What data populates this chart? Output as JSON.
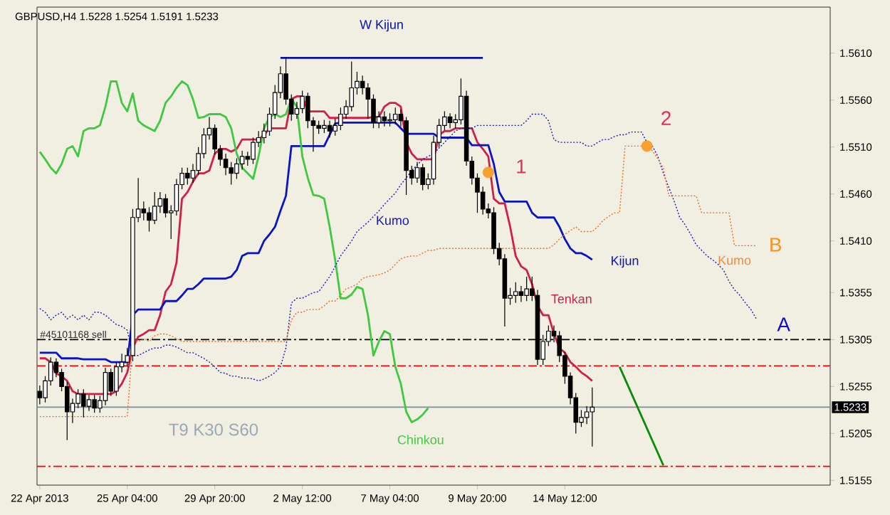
{
  "chart_data": {
    "type": "candlestick",
    "title": "GBPUSD,H4  1.5228 1.5254 1.5191 1.5233",
    "categories": [
      "22 Apr 2013",
      null,
      null,
      null,
      null,
      null,
      null,
      null,
      null,
      null,
      null,
      null,
      null,
      null,
      null,
      null,
      "25 Apr 04:00",
      null,
      null,
      null,
      null,
      null,
      null,
      null,
      null,
      null,
      null,
      null,
      null,
      null,
      null,
      null,
      "29 Apr 20:00",
      null,
      null,
      null,
      null,
      null,
      null,
      null,
      null,
      null,
      null,
      null,
      null,
      null,
      null,
      null,
      "2 May 12:00",
      null,
      null,
      null,
      null,
      null,
      null,
      null,
      null,
      null,
      null,
      null,
      null,
      null,
      null,
      null,
      "7 May 04:00",
      null,
      null,
      null,
      null,
      null,
      null,
      null,
      null,
      null,
      null,
      null,
      null,
      null,
      null,
      null,
      "9 May 20:00",
      null,
      null,
      null,
      null,
      null,
      null,
      null,
      null,
      null,
      null,
      null,
      null,
      null,
      null,
      null,
      "14 May 12:00",
      null,
      null,
      null,
      null,
      null,
      null,
      null,
      null,
      null,
      null,
      null,
      null,
      null,
      null,
      null,
      null,
      null,
      null,
      null,
      null,
      null,
      null,
      null,
      null,
      null,
      null,
      null,
      null,
      null,
      null,
      null,
      null,
      null,
      null,
      null,
      null,
      null,
      null,
      null,
      null,
      null,
      null,
      null,
      null,
      null,
      null,
      null,
      null
    ],
    "ohlc": [
      [
        1.525,
        1.5256,
        1.5236,
        1.5243
      ],
      [
        1.5243,
        1.5266,
        1.5238,
        1.5261
      ],
      [
        1.5261,
        1.5286,
        1.5256,
        1.5281
      ],
      [
        1.5281,
        1.5285,
        1.5265,
        1.527
      ],
      [
        1.527,
        1.5274,
        1.525,
        1.5255
      ],
      [
        1.5255,
        1.526,
        1.5198,
        1.5228
      ],
      [
        1.5228,
        1.5242,
        1.5216,
        1.5237
      ],
      [
        1.5237,
        1.5252,
        1.5232,
        1.5247
      ],
      [
        1.5247,
        1.5252,
        1.5222,
        1.5234
      ],
      [
        1.5234,
        1.5246,
        1.5229,
        1.5241
      ],
      [
        1.5241,
        1.5246,
        1.5227,
        1.5232
      ],
      [
        1.5232,
        1.5245,
        1.5227,
        1.524
      ],
      [
        1.524,
        1.5275,
        1.5235,
        1.527
      ],
      [
        1.527,
        1.5274,
        1.5245,
        1.525
      ],
      [
        1.525,
        1.5281,
        1.5245,
        1.5276
      ],
      [
        1.5276,
        1.529,
        1.527,
        1.5281
      ],
      [
        1.5281,
        1.5296,
        1.5276,
        1.5288
      ],
      [
        1.5288,
        1.5444,
        1.5282,
        1.5435
      ],
      [
        1.5435,
        1.5477,
        1.543,
        1.5444
      ],
      [
        1.5444,
        1.5452,
        1.5432,
        1.544
      ],
      [
        1.544,
        1.5446,
        1.542,
        1.5432
      ],
      [
        1.5432,
        1.5462,
        1.5428,
        1.5447
      ],
      [
        1.5447,
        1.5462,
        1.544,
        1.5455
      ],
      [
        1.5455,
        1.546,
        1.5435,
        1.544
      ],
      [
        1.544,
        1.5448,
        1.5412,
        1.5442
      ],
      [
        1.5442,
        1.5476,
        1.5437,
        1.547
      ],
      [
        1.547,
        1.5488,
        1.5465,
        1.5482
      ],
      [
        1.5482,
        1.5488,
        1.547,
        1.5477
      ],
      [
        1.5477,
        1.5492,
        1.5472,
        1.5485
      ],
      [
        1.5485,
        1.551,
        1.548,
        1.5503
      ],
      [
        1.5503,
        1.553,
        1.5498,
        1.5523
      ],
      [
        1.5523,
        1.5542,
        1.5518,
        1.553
      ],
      [
        1.553,
        1.5534,
        1.5502,
        1.5508
      ],
      [
        1.5508,
        1.5512,
        1.549,
        1.5497
      ],
      [
        1.5497,
        1.5503,
        1.548,
        1.5488
      ],
      [
        1.5488,
        1.5494,
        1.547,
        1.5482
      ],
      [
        1.5482,
        1.5498,
        1.5476,
        1.5492
      ],
      [
        1.5492,
        1.5506,
        1.5486,
        1.55
      ],
      [
        1.55,
        1.5505,
        1.549,
        1.5497
      ],
      [
        1.5497,
        1.552,
        1.5492,
        1.5515
      ],
      [
        1.5515,
        1.5527,
        1.551,
        1.552
      ],
      [
        1.552,
        1.5535,
        1.5514,
        1.5527
      ],
      [
        1.5527,
        1.5552,
        1.5522,
        1.5545
      ],
      [
        1.5545,
        1.5576,
        1.554,
        1.5568
      ],
      [
        1.5568,
        1.5596,
        1.5562,
        1.5588
      ],
      [
        1.5588,
        1.5606,
        1.5555,
        1.5561
      ],
      [
        1.5561,
        1.5566,
        1.5538,
        1.5545
      ],
      [
        1.5545,
        1.5558,
        1.554,
        1.5551
      ],
      [
        1.5551,
        1.557,
        1.5546,
        1.5564
      ],
      [
        1.5564,
        1.5568,
        1.553,
        1.5538
      ],
      [
        1.5538,
        1.5542,
        1.5505,
        1.5533
      ],
      [
        1.5533,
        1.5538,
        1.5524,
        1.553
      ],
      [
        1.553,
        1.5539,
        1.5525,
        1.5533
      ],
      [
        1.5533,
        1.5538,
        1.552,
        1.5527
      ],
      [
        1.5527,
        1.554,
        1.5522,
        1.5533
      ],
      [
        1.5533,
        1.5552,
        1.5528,
        1.5545
      ],
      [
        1.5545,
        1.556,
        1.554,
        1.5553
      ],
      [
        1.5553,
        1.5601,
        1.5548,
        1.5573
      ],
      [
        1.5573,
        1.559,
        1.5566,
        1.558
      ],
      [
        1.558,
        1.5586,
        1.5566,
        1.5573
      ],
      [
        1.5573,
        1.5578,
        1.554,
        1.5561
      ],
      [
        1.5561,
        1.5566,
        1.553,
        1.5536
      ],
      [
        1.5536,
        1.5548,
        1.553,
        1.5542
      ],
      [
        1.5542,
        1.5548,
        1.5532,
        1.5538
      ],
      [
        1.5538,
        1.5546,
        1.5532,
        1.5539
      ],
      [
        1.5539,
        1.5552,
        1.5534,
        1.5545
      ],
      [
        1.5545,
        1.555,
        1.5532,
        1.5538
      ],
      [
        1.5538,
        1.5542,
        1.5459,
        1.5485
      ],
      [
        1.5485,
        1.549,
        1.547,
        1.5477
      ],
      [
        1.5477,
        1.5494,
        1.5472,
        1.5488
      ],
      [
        1.5488,
        1.5492,
        1.5464,
        1.547
      ],
      [
        1.547,
        1.5482,
        1.5465,
        1.5476
      ],
      [
        1.5476,
        1.5522,
        1.547,
        1.5515
      ],
      [
        1.5515,
        1.554,
        1.551,
        1.5533
      ],
      [
        1.5533,
        1.5548,
        1.5528,
        1.5542
      ],
      [
        1.5542,
        1.5546,
        1.553,
        1.5536
      ],
      [
        1.5536,
        1.5545,
        1.553,
        1.5539
      ],
      [
        1.5539,
        1.5583,
        1.5534,
        1.5564
      ],
      [
        1.5564,
        1.557,
        1.549,
        1.5495
      ],
      [
        1.5495,
        1.55,
        1.547,
        1.5477
      ],
      [
        1.5477,
        1.5482,
        1.544,
        1.5462
      ],
      [
        1.5462,
        1.5468,
        1.5438,
        1.5444
      ],
      [
        1.5444,
        1.545,
        1.5434,
        1.544
      ],
      [
        1.544,
        1.5446,
        1.5396,
        1.5402
      ],
      [
        1.5402,
        1.5408,
        1.5384,
        1.5391
      ],
      [
        1.5391,
        1.5396,
        1.5319,
        1.5349
      ],
      [
        1.5349,
        1.536,
        1.5342,
        1.5352
      ],
      [
        1.5352,
        1.5366,
        1.5344,
        1.5356
      ],
      [
        1.5356,
        1.5362,
        1.5345,
        1.5352
      ],
      [
        1.5352,
        1.5372,
        1.5346,
        1.5359
      ],
      [
        1.5359,
        1.5372,
        1.5346,
        1.5352
      ],
      [
        1.5352,
        1.5358,
        1.5278,
        1.5284
      ],
      [
        1.5284,
        1.531,
        1.5278,
        1.5303
      ],
      [
        1.5303,
        1.532,
        1.5298,
        1.5314
      ],
      [
        1.5314,
        1.532,
        1.5302,
        1.5309
      ],
      [
        1.5309,
        1.5314,
        1.5281,
        1.5288
      ],
      [
        1.5288,
        1.5292,
        1.5258,
        1.5266
      ],
      [
        1.5266,
        1.527,
        1.5236,
        1.5243
      ],
      [
        1.5243,
        1.5248,
        1.5205,
        1.5217
      ],
      [
        1.5217,
        1.523,
        1.5212,
        1.5222
      ],
      [
        1.5222,
        1.5234,
        1.5215,
        1.5228
      ],
      [
        1.5228,
        1.5254,
        1.5191,
        1.5233
      ],
      null,
      null,
      null,
      null,
      null,
      null,
      null,
      null,
      null,
      null,
      null,
      null,
      null,
      null,
      null,
      null,
      null,
      null,
      null,
      null,
      null,
      null,
      null,
      null,
      null,
      null,
      null,
      null,
      null,
      null,
      null,
      null,
      null,
      null,
      null,
      null,
      null,
      null,
      null,
      null,
      null,
      null,
      null
    ],
    "series": [
      {
        "name": "Tenkan",
        "type": "line",
        "color": "#d0204a",
        "values": [
          1.5285,
          1.5285,
          1.5281,
          1.5269,
          1.5266,
          1.5261,
          1.525,
          1.5247,
          1.5247,
          1.5247,
          1.5247,
          1.5247,
          1.5247,
          1.5247,
          1.525,
          1.5258,
          1.527,
          1.5296,
          1.5308,
          1.5311,
          1.5315,
          1.5315,
          1.5331,
          1.5356,
          1.5364,
          1.5387,
          1.5455,
          1.5462,
          1.5473,
          1.5482,
          1.5482,
          1.5485,
          1.5503,
          1.5508,
          1.5508,
          1.5505,
          1.5508,
          1.5518,
          1.5518,
          1.5518,
          1.5518,
          1.5523,
          1.553,
          1.553,
          1.553,
          1.553,
          1.5561,
          1.5564,
          1.5564,
          1.5548,
          1.5548,
          1.5548,
          1.5548,
          1.5541,
          1.5541,
          1.5541,
          1.5541,
          1.5541,
          1.5541,
          1.5541,
          1.5541,
          1.5542,
          1.5542,
          1.5553,
          1.5557,
          1.5557,
          1.5553,
          1.5515,
          1.5503,
          1.5497,
          1.5497,
          1.5497,
          1.5497,
          1.5523,
          1.5527,
          1.5527,
          1.553,
          1.553,
          1.553,
          1.553,
          1.5515,
          1.5508,
          1.55,
          1.5455,
          1.545,
          1.545,
          1.5425,
          1.5394,
          1.5383,
          1.5379,
          1.5364,
          1.5341,
          1.5331,
          1.5331,
          1.5311,
          1.5296,
          1.5291,
          1.5281,
          1.5276,
          1.527,
          1.5266,
          1.5261,
          null,
          null,
          null,
          null,
          null,
          null,
          null,
          null,
          null,
          null,
          null,
          null,
          null,
          null,
          null,
          null,
          null,
          null,
          null,
          null,
          null,
          null,
          null,
          null,
          null,
          null,
          null,
          null,
          null,
          null,
          null,
          null,
          null,
          null,
          null,
          null,
          null,
          null,
          null,
          null,
          null,
          null,
          null
        ]
      },
      {
        "name": "Kijun",
        "type": "line",
        "color": "#0a14c0",
        "values": [
          1.5291,
          1.5291,
          1.5291,
          1.5291,
          1.5285,
          1.5285,
          1.5285,
          1.5285,
          1.5284,
          1.5284,
          1.5284,
          1.5284,
          1.5284,
          1.5281,
          1.5281,
          1.5281,
          1.5281,
          1.5331,
          1.5337,
          1.5337,
          1.5337,
          1.5337,
          1.5337,
          1.5346,
          1.5346,
          1.5346,
          1.5352,
          1.5359,
          1.5359,
          1.5364,
          1.537,
          1.537,
          1.537,
          1.537,
          1.537,
          1.5372,
          1.5379,
          1.5394,
          1.5397,
          1.5397,
          1.5397,
          1.541,
          1.5417,
          1.5425,
          1.5442,
          1.5458,
          1.5511,
          1.5511,
          1.5511,
          1.5511,
          1.5511,
          1.5511,
          1.5511,
          1.5523,
          1.5535,
          1.5536,
          1.5536,
          1.5536,
          1.5536,
          1.5536,
          1.5536,
          1.5536,
          1.5536,
          1.5536,
          1.5536,
          1.5536,
          1.553,
          1.5524,
          1.5524,
          1.5524,
          1.5524,
          1.5524,
          1.5524,
          1.552,
          1.552,
          1.552,
          1.552,
          1.552,
          1.552,
          1.5512,
          1.5512,
          1.5512,
          1.5512,
          1.5492,
          1.5462,
          1.5452,
          1.5452,
          1.5452,
          1.5452,
          1.5452,
          1.544,
          1.5435,
          1.5435,
          1.5435,
          1.5435,
          1.5425,
          1.5412,
          1.5402,
          1.5397,
          1.5397,
          1.5394,
          1.539,
          null,
          null,
          null,
          null,
          null,
          null,
          null,
          null,
          null,
          null,
          null,
          null,
          null,
          null,
          null,
          null,
          null,
          null,
          null,
          null,
          null,
          null,
          null,
          null,
          null,
          null,
          null,
          null,
          null,
          null,
          null,
          null,
          null,
          null,
          null,
          null,
          null,
          null,
          null,
          null,
          null,
          null,
          null
        ]
      },
      {
        "name": "Chinkou",
        "type": "line",
        "color": "#40c840",
        "values": [
          1.5505,
          1.5497,
          1.5488,
          1.5482,
          1.5492,
          1.5508,
          1.5511,
          1.55,
          1.5527,
          1.553,
          1.553,
          1.5533,
          1.5553,
          1.558,
          1.558,
          1.5557,
          1.5548,
          1.5567,
          1.5538,
          1.5533,
          1.553,
          1.5527,
          1.5538,
          1.5557,
          1.5564,
          1.5573,
          1.558,
          1.5576,
          1.5561,
          1.5541,
          1.5542,
          1.5545,
          1.5545,
          1.5545,
          1.5542,
          1.553,
          1.5503,
          1.5488,
          1.5482,
          1.5476,
          1.55,
          1.553,
          1.5542,
          1.5545,
          1.5542,
          1.5545,
          1.5561,
          1.5553,
          1.55,
          1.5477,
          1.5459,
          1.5458,
          1.5455,
          1.5425,
          1.539,
          1.5349,
          1.5349,
          1.5353,
          1.5361,
          1.5359,
          1.5331,
          1.5288,
          1.5303,
          1.5314,
          1.5311,
          1.5276,
          1.5258,
          1.5228,
          1.5217,
          1.522,
          1.5225,
          1.5232,
          null,
          null,
          null,
          null,
          null,
          null,
          null,
          null,
          null,
          null,
          null,
          null,
          null,
          null,
          null,
          null,
          null,
          null,
          null,
          null,
          null,
          null,
          null,
          null,
          null,
          null,
          null,
          null,
          null,
          null,
          null,
          null,
          null,
          null,
          null,
          null,
          null,
          null,
          null,
          null,
          null,
          null,
          null,
          null,
          null,
          null,
          null,
          null,
          null,
          null,
          null,
          null,
          null,
          null,
          null,
          null,
          null,
          null,
          null,
          null,
          null,
          null,
          null,
          null,
          null,
          null,
          null,
          null,
          null,
          null,
          null,
          null,
          null
        ]
      },
      {
        "name": "W Kijun",
        "type": "line",
        "color": "#0a14a0",
        "values": [
          null,
          null,
          null,
          null,
          null,
          null,
          null,
          null,
          null,
          null,
          null,
          null,
          null,
          null,
          null,
          null,
          null,
          null,
          null,
          null,
          null,
          null,
          null,
          null,
          null,
          null,
          null,
          null,
          null,
          null,
          null,
          null,
          null,
          null,
          null,
          null,
          null,
          null,
          null,
          null,
          null,
          null,
          null,
          null,
          1.5605,
          1.5605,
          1.5605,
          1.5605,
          1.5605,
          1.5605,
          1.5605,
          1.5605,
          1.5605,
          1.5605,
          1.5605,
          1.5605,
          1.5605,
          1.5605,
          1.5605,
          1.5605,
          1.5605,
          1.5605,
          1.5605,
          1.5605,
          1.5605,
          1.5605,
          1.5605,
          1.5605,
          1.5605,
          1.5605,
          1.5605,
          1.5605,
          1.5605,
          1.5605,
          1.5605,
          1.5605,
          1.5605,
          1.5605,
          1.5605,
          1.5605,
          1.5605,
          1.5605,
          null,
          null,
          null,
          null,
          null,
          null,
          null,
          null,
          null,
          null,
          null,
          null,
          null,
          null,
          null,
          null,
          null,
          null,
          null,
          null,
          null,
          null,
          null,
          null,
          null,
          null,
          null,
          null,
          null,
          null,
          null,
          null,
          null,
          null,
          null,
          null,
          null,
          null,
          null,
          null,
          null,
          null,
          null,
          null,
          null,
          null,
          null,
          null,
          null,
          null,
          null,
          null,
          null,
          null,
          null,
          null,
          null,
          null,
          null,
          null,
          null,
          null,
          null
        ]
      },
      {
        "type": "line",
        "color": "#1a1ab4",
        "line_style": "dotted",
        "values": [
          1.5338,
          1.5334,
          1.5326,
          1.5331,
          1.5334,
          1.5327,
          1.5331,
          1.5326,
          1.5331,
          1.5326,
          1.5334,
          1.5334,
          1.5331,
          1.5326,
          1.5321,
          1.5319,
          1.5315,
          1.5288,
          1.5288,
          1.5291,
          1.5294,
          1.5296,
          1.5296,
          1.5299,
          1.5299,
          1.5297,
          1.5294,
          1.5291,
          1.5291,
          1.5288,
          1.5285,
          1.5281,
          1.5276,
          1.527,
          1.5269,
          1.5266,
          1.5266,
          1.5264,
          1.5264,
          1.5263,
          1.5261,
          1.5263,
          1.5266,
          1.527,
          1.5276,
          1.5296,
          1.5344,
          1.5349,
          1.5349,
          1.5352,
          1.5355,
          1.5356,
          1.5364,
          1.5372,
          1.5383,
          1.5394,
          1.5402,
          1.541,
          1.542,
          1.5425,
          1.543,
          1.5436,
          1.5442,
          1.5449,
          1.5455,
          1.5461,
          1.547,
          1.5477,
          1.5485,
          1.5491,
          1.5497,
          1.55,
          1.5503,
          1.5509,
          1.5515,
          1.5521,
          1.5527,
          1.553,
          1.553,
          1.553,
          1.5533,
          1.5533,
          1.5533,
          1.5533,
          1.5533,
          1.5533,
          1.5533,
          1.5533,
          1.5533,
          1.5538,
          1.5545,
          1.5545,
          1.5545,
          1.5538,
          1.5518,
          1.5515,
          1.5515,
          1.5515,
          1.5515,
          1.5515,
          1.5511,
          1.5511,
          1.5515,
          1.5518,
          1.5518,
          1.5521,
          1.5523,
          1.5523,
          1.5526,
          1.5526,
          1.5526,
          1.5515,
          1.5511,
          1.55,
          1.5482,
          1.5467,
          1.5452,
          1.5435,
          1.5427,
          1.5417,
          1.5406,
          1.54,
          1.5394,
          1.539,
          1.5385,
          1.5379,
          1.5367,
          1.5358,
          1.5352,
          1.5344,
          1.5337,
          1.5327,
          null,
          null,
          null,
          null,
          null,
          null,
          null,
          null,
          null,
          null,
          null,
          null,
          null
        ]
      },
      {
        "type": "line",
        "color": "#f06a1e",
        "line_style": "dotted",
        "values": [
          1.5223,
          1.5223,
          1.5223,
          1.5223,
          1.5223,
          1.5223,
          1.5223,
          1.5223,
          1.5223,
          1.5223,
          1.5223,
          1.5223,
          1.5223,
          1.5223,
          1.5223,
          1.5223,
          1.5223,
          1.5303,
          1.5303,
          1.5306,
          1.5303,
          1.5309,
          1.5311,
          1.5311,
          1.5309,
          1.5306,
          1.5303,
          1.5303,
          1.5303,
          1.5303,
          1.5303,
          1.5303,
          1.5303,
          1.5303,
          1.5303,
          1.5303,
          1.5303,
          1.5303,
          1.5303,
          1.5303,
          1.5303,
          1.5303,
          1.5303,
          1.5303,
          1.5303,
          1.5303,
          1.5326,
          1.5334,
          1.5334,
          1.5337,
          1.5337,
          1.5337,
          1.5341,
          1.5346,
          1.5346,
          1.5352,
          1.5359,
          1.5361,
          1.5364,
          1.537,
          1.5372,
          1.5373,
          1.5374,
          1.5376,
          1.5379,
          1.5385,
          1.5391,
          1.5393,
          1.5394,
          1.5394,
          1.5397,
          1.54,
          1.54,
          1.5402,
          1.5402,
          1.5402,
          1.5402,
          1.5402,
          1.5402,
          1.5402,
          1.5402,
          1.5402,
          1.5402,
          1.5402,
          1.5402,
          1.5402,
          1.5402,
          1.5402,
          1.5402,
          1.5402,
          1.5402,
          1.5402,
          1.5402,
          1.5402,
          1.5406,
          1.5412,
          1.5417,
          1.5421,
          1.5425,
          1.542,
          1.542,
          1.542,
          1.5425,
          1.5432,
          1.5436,
          1.544,
          1.544,
          1.5511,
          1.5511,
          1.5511,
          1.5511,
          1.5511,
          1.5506,
          1.5497,
          1.5488,
          1.5458,
          1.5458,
          1.5458,
          1.5458,
          1.5458,
          1.5458,
          1.544,
          1.544,
          1.544,
          1.544,
          1.544,
          1.544,
          1.5405,
          1.5405,
          1.5405,
          1.5405,
          1.5405,
          null,
          null,
          null,
          null,
          null,
          null,
          null,
          null,
          null,
          null,
          null,
          null,
          null
        ]
      },
      {
        "type": "line",
        "color": "#0a8a0a",
        "values": [
          null,
          null,
          null,
          null,
          null,
          null,
          null,
          null,
          null,
          null,
          null,
          null,
          null,
          null,
          null,
          null,
          null,
          null,
          null,
          null,
          null,
          null,
          null,
          null,
          null,
          null,
          null,
          null,
          null,
          null,
          null,
          null,
          null,
          null,
          null,
          null,
          null,
          null,
          null,
          null,
          null,
          null,
          null,
          null,
          null,
          null,
          null,
          null,
          null,
          null,
          null,
          null,
          null,
          null,
          null,
          null,
          null,
          null,
          null,
          null,
          null,
          null,
          null,
          null,
          null,
          null,
          null,
          null,
          null,
          null,
          null,
          null,
          null,
          null,
          null,
          null,
          null,
          null,
          null,
          null,
          null,
          null,
          null,
          null,
          null,
          null,
          null,
          null,
          null,
          null,
          null,
          null,
          null,
          null,
          null,
          null,
          null,
          null,
          null,
          null,
          null,
          null,
          null,
          null,
          null,
          null,
          1.5276,
          null,
          null,
          null,
          null,
          null,
          null,
          null,
          1.5171,
          null,
          null,
          null,
          null,
          null,
          null,
          null,
          null,
          null,
          null,
          null,
          null,
          null,
          null,
          null,
          null,
          null,
          null,
          null,
          null,
          null,
          null,
          null,
          null,
          null,
          null,
          null,
          null,
          null,
          null
        ]
      },
      {
        "type": "scatter",
        "color": "#f7a030",
        "marker": "circle",
        "values": [
          null,
          null,
          null,
          null,
          null,
          null,
          null,
          null,
          null,
          null,
          null,
          null,
          null,
          null,
          null,
          null,
          null,
          null,
          null,
          null,
          null,
          null,
          null,
          null,
          null,
          null,
          null,
          null,
          null,
          null,
          null,
          null,
          null,
          null,
          null,
          null,
          null,
          null,
          null,
          null,
          null,
          null,
          null,
          null,
          null,
          null,
          null,
          null,
          null,
          null,
          null,
          null,
          null,
          null,
          null,
          null,
          null,
          null,
          null,
          null,
          null,
          null,
          null,
          null,
          null,
          null,
          null,
          null,
          null,
          null,
          null,
          null,
          null,
          null,
          null,
          null,
          null,
          null,
          null,
          null,
          null,
          null,
          1.5483,
          null,
          null,
          null,
          null,
          null,
          null,
          null,
          null,
          null,
          null,
          null,
          null,
          null,
          null,
          null,
          null,
          null,
          null,
          null,
          null,
          null,
          null,
          null,
          null,
          null,
          null,
          null,
          null,
          1.5511,
          null,
          null,
          null,
          null,
          null,
          null,
          null,
          null,
          null,
          null,
          null,
          null,
          null,
          null,
          null,
          null,
          null,
          null,
          null,
          null,
          null,
          null,
          null,
          null,
          null,
          null,
          null,
          null,
          null,
          null,
          null,
          null,
          null
        ]
      }
    ],
    "ylim": [
      1.515,
      1.5659
    ],
    "yticks": [
      1.5155,
      1.5205,
      1.5255,
      1.5305,
      1.5355,
      {
        "value": 1.541,
        "label": "1.5410"
      },
      {
        "value": 1.546,
        "label": "1.5460"
      },
      {
        "value": 1.551,
        "label": "1.5510"
      },
      {
        "value": 1.556,
        "label": "1.5560"
      },
      {
        "value": 1.561,
        "label": "1.5610"
      }
    ],
    "ref_lines": [
      {
        "axis": "y",
        "value": 1.5305,
        "color": "#000000",
        "line_style": "dashed"
      },
      {
        "axis": "y",
        "value": 1.5277,
        "color": "#ff0000",
        "line_style": "dashed"
      },
      {
        "axis": "y",
        "value": 1.517,
        "color": "#ff0000",
        "line_style": "dashed"
      },
      {
        "axis": "y",
        "value": 1.5233,
        "color": "#7f8c99",
        "line_style": "solid",
        "label": "1.5233"
      }
    ],
    "annotations": [
      "Kumo",
      "Kumo",
      "A",
      "B",
      "1",
      "2",
      "T9 K30 S60",
      "#45101168 sell"
    ]
  }
}
